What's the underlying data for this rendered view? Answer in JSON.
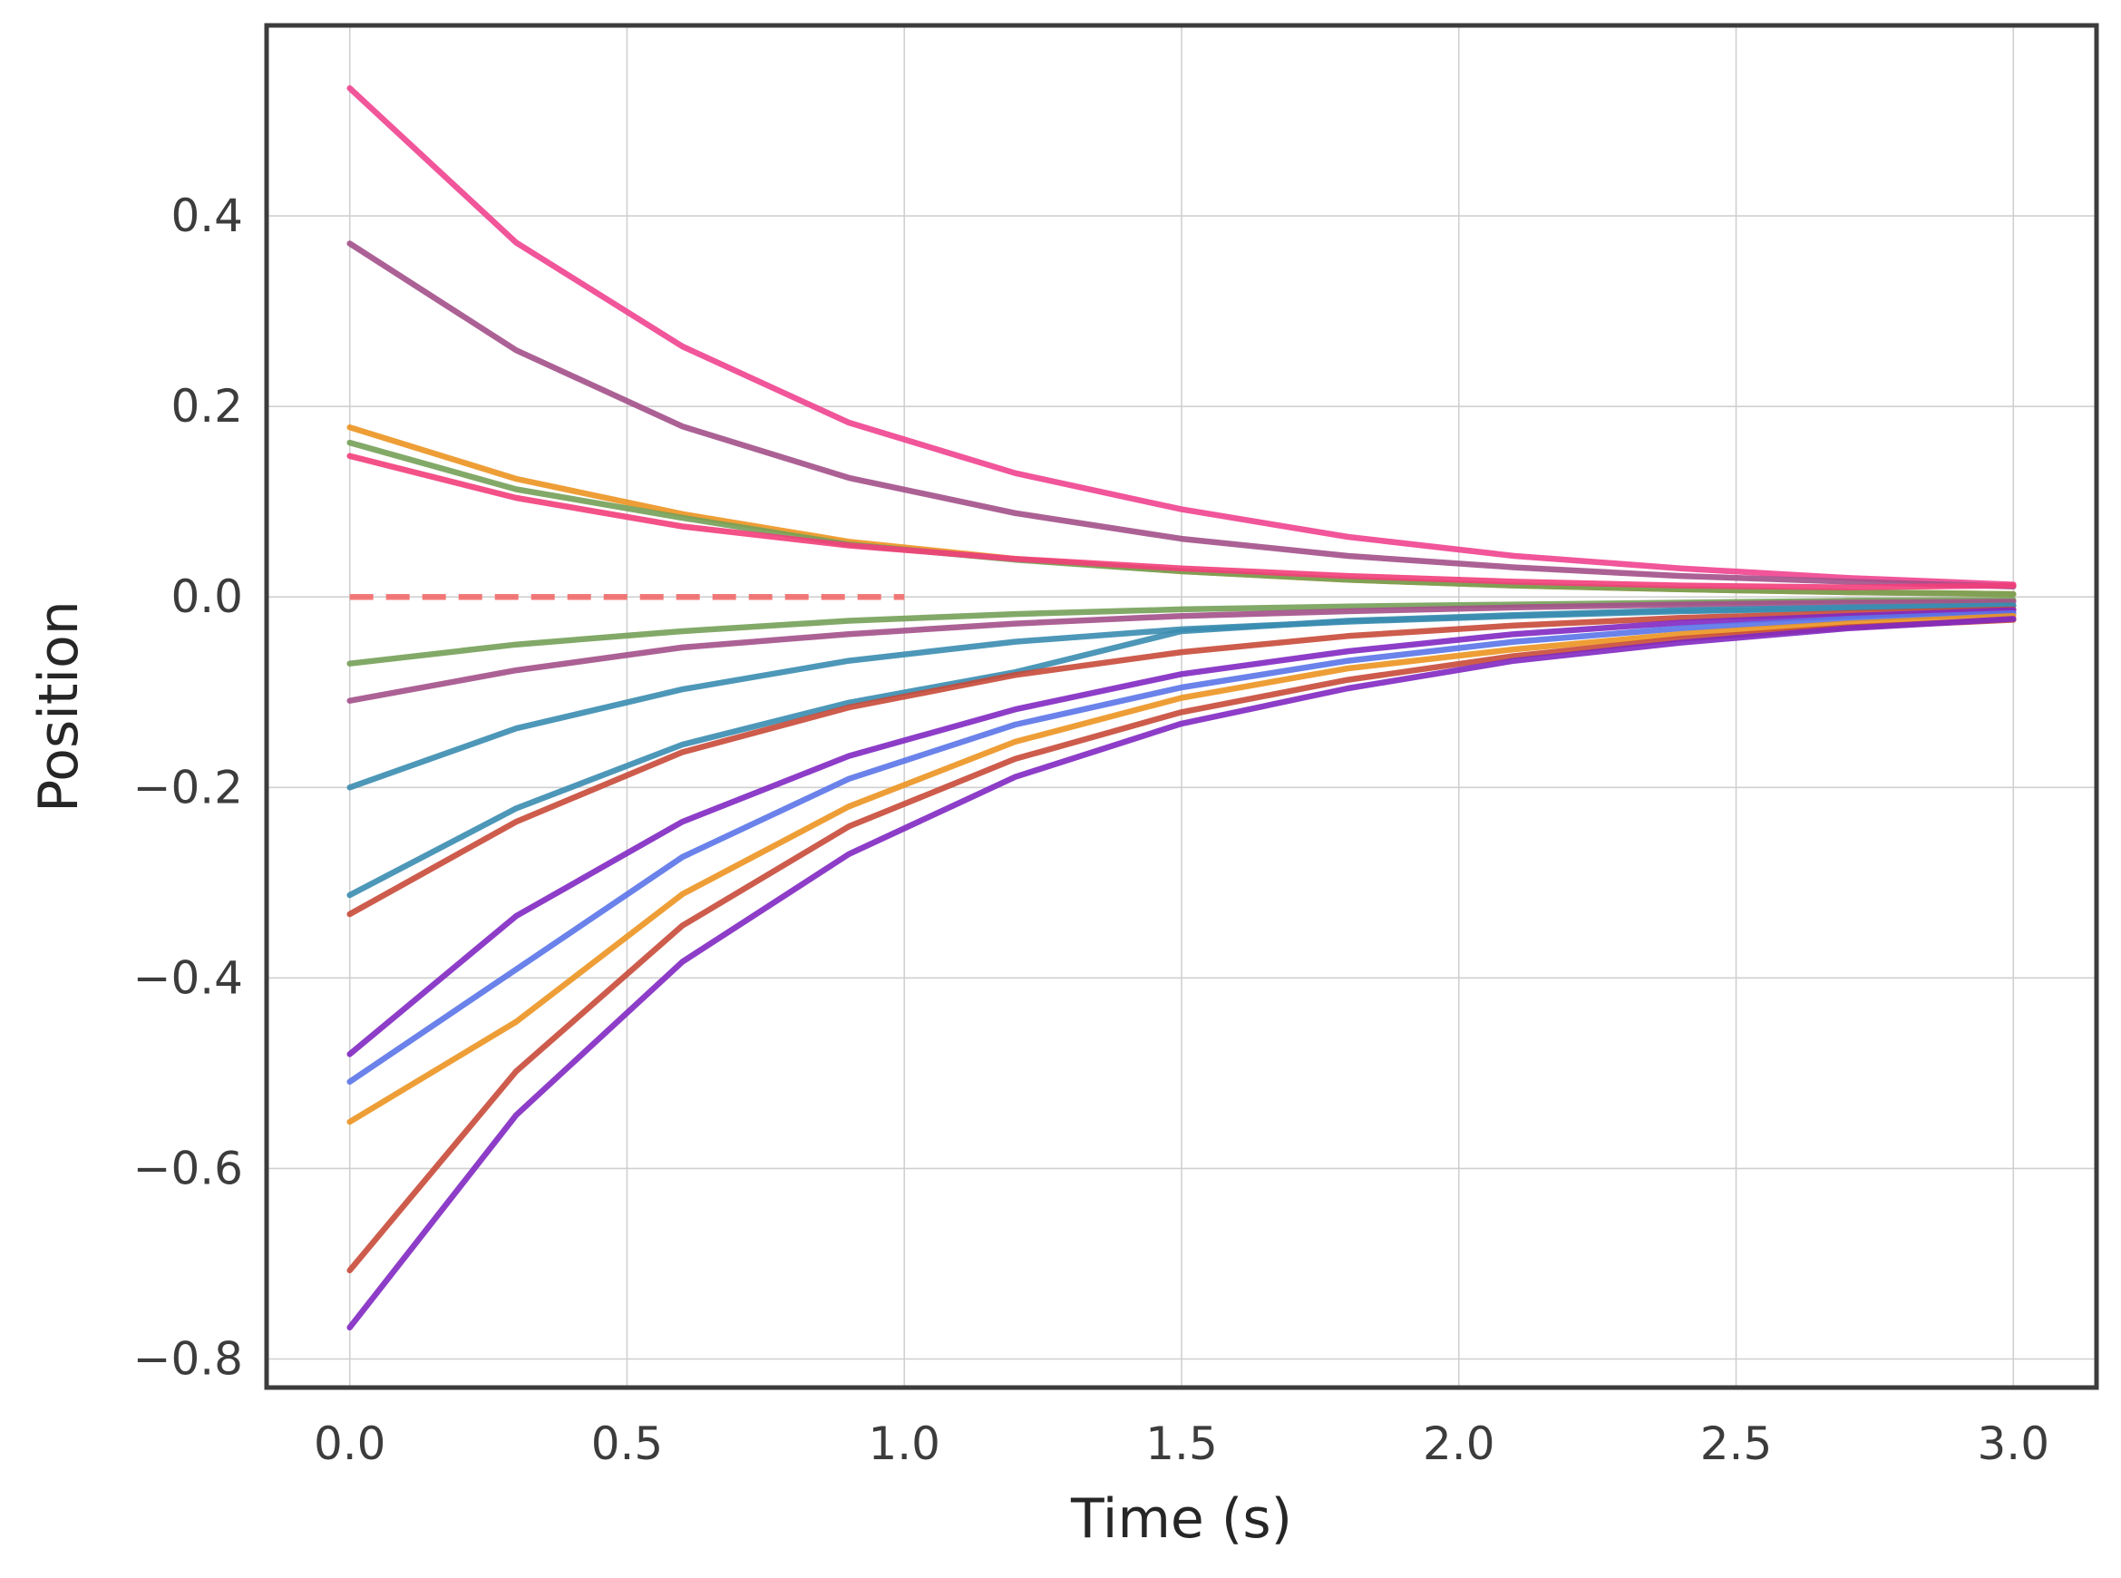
{
  "chart_data": {
    "type": "line",
    "title": "",
    "xlabel": "Time (s)",
    "ylabel": "Position",
    "xlim": [
      -0.15,
      3.15
    ],
    "ylim": [
      -0.83,
      0.6
    ],
    "grid": true,
    "legend": "none",
    "x_ticks": [
      "0.0",
      "0.5",
      "1.0",
      "1.5",
      "2.0",
      "2.5",
      "3.0"
    ],
    "x_tick_values": [
      0.0,
      0.5,
      1.0,
      1.5,
      2.0,
      2.5,
      3.0
    ],
    "y_ticks": [
      "0.4",
      "0.2",
      "0.0",
      "−0.2",
      "−0.4",
      "−0.6",
      "−0.8"
    ],
    "y_tick_values": [
      0.4,
      0.2,
      0.0,
      -0.2,
      -0.4,
      -0.6,
      -0.8
    ],
    "x": [
      0.0,
      0.3,
      0.6,
      0.9,
      1.2,
      1.5,
      1.8,
      2.1,
      2.4,
      2.7,
      3.0
    ],
    "series": [
      {
        "color": "#f0438f",
        "values": [
          0.534,
          0.372,
          0.263,
          0.183,
          0.13,
          0.092,
          0.063,
          0.043,
          0.03,
          0.02,
          0.013
        ]
      },
      {
        "color": "#a3508a",
        "values": [
          0.371,
          0.259,
          0.179,
          0.125,
          0.088,
          0.061,
          0.043,
          0.031,
          0.022,
          0.016,
          0.011
        ]
      },
      {
        "color": "#ec9420",
        "values": [
          0.178,
          0.124,
          0.087,
          0.058,
          0.04,
          0.027,
          0.018,
          0.012,
          0.008,
          0.005,
          0.003
        ]
      },
      {
        "color": "#74a058",
        "values": [
          0.162,
          0.113,
          0.083,
          0.055,
          0.039,
          0.027,
          0.018,
          0.012,
          0.008,
          0.005,
          0.003
        ]
      },
      {
        "color": "#f23e7a",
        "values": [
          0.148,
          0.104,
          0.074,
          0.054,
          0.04,
          0.03,
          0.022,
          0.016,
          0.012,
          0.01,
          0.012
        ]
      },
      {
        "color": "#74a058",
        "values": [
          -0.07,
          -0.05,
          -0.036,
          -0.025,
          -0.018,
          -0.013,
          -0.01,
          -0.008,
          -0.006,
          -0.004,
          -0.003
        ]
      },
      {
        "color": "#a3508a",
        "values": [
          -0.109,
          -0.077,
          -0.053,
          -0.039,
          -0.028,
          -0.02,
          -0.015,
          -0.011,
          -0.008,
          -0.006,
          -0.005
        ]
      },
      {
        "color": "#3a8cb0",
        "values": [
          -0.2,
          -0.138,
          -0.097,
          -0.067,
          -0.047,
          -0.034,
          -0.026,
          -0.02,
          -0.015,
          -0.012,
          -0.009
        ]
      },
      {
        "color": "#3a8cb0",
        "values": [
          -0.313,
          -0.222,
          -0.155,
          -0.111,
          -0.079,
          -0.036,
          -0.025,
          -0.019,
          -0.014,
          -0.011,
          -0.009
        ]
      },
      {
        "color": "#c84a38",
        "values": [
          -0.333,
          -0.236,
          -0.163,
          -0.116,
          -0.082,
          -0.058,
          -0.041,
          -0.03,
          -0.022,
          -0.017,
          -0.013
        ]
      },
      {
        "color": "#8128c2",
        "values": [
          -0.48,
          -0.335,
          -0.236,
          -0.167,
          -0.118,
          -0.081,
          -0.057,
          -0.039,
          -0.027,
          -0.02,
          -0.014
        ]
      },
      {
        "color": "#5a74e8",
        "values": [
          -0.509,
          -0.391,
          -0.273,
          -0.191,
          -0.134,
          -0.095,
          -0.067,
          -0.047,
          -0.033,
          -0.023,
          -0.017
        ]
      },
      {
        "color": "#ec9420",
        "values": [
          -0.551,
          -0.446,
          -0.312,
          -0.22,
          -0.152,
          -0.106,
          -0.075,
          -0.055,
          -0.039,
          -0.028,
          -0.02
        ]
      },
      {
        "color": "#c84a38",
        "values": [
          -0.707,
          -0.498,
          -0.345,
          -0.241,
          -0.17,
          -0.121,
          -0.087,
          -0.062,
          -0.044,
          -0.032,
          -0.024
        ]
      },
      {
        "color": "#8128c2",
        "values": [
          -0.767,
          -0.544,
          -0.383,
          -0.27,
          -0.189,
          -0.133,
          -0.096,
          -0.067,
          -0.048,
          -0.033,
          -0.023
        ]
      }
    ],
    "reference_line": {
      "color": "#f26a6a",
      "style": "dashed",
      "x": [
        0.0,
        1.0
      ],
      "values": [
        0.0,
        0.0
      ]
    }
  }
}
